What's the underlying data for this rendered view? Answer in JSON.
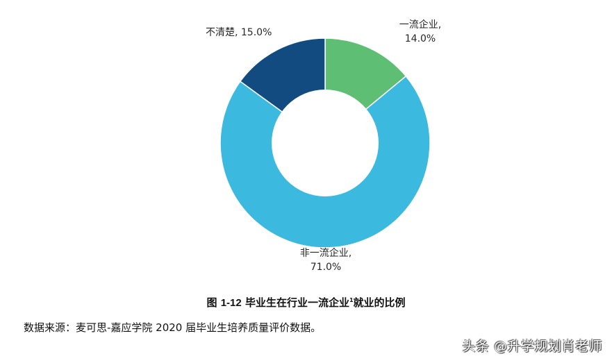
{
  "chart_data": {
    "type": "pie",
    "subtype": "donut",
    "title": "图 1-12 毕业生在行业一流企业就业的比例",
    "categories": [
      "一流企业",
      "非一流企业",
      "不清楚"
    ],
    "values": [
      14.0,
      71.0,
      15.0
    ],
    "unit": "%",
    "colors": [
      "#5ebe74",
      "#3bb9de",
      "#124b80"
    ],
    "data_labels": [
      "一流企业, 14.0%",
      "非一流企业, 71.0%",
      "不清楚, 15.0%"
    ],
    "start_angle_deg": 0,
    "direction": "clockwise",
    "legend": "none"
  },
  "labels": {
    "first_tier": {
      "name": "一流企业,",
      "value": "14.0%"
    },
    "non_first_tier": {
      "name": "非一流企业,",
      "value": "71.0%"
    },
    "unclear": {
      "text": "不清楚, 15.0%"
    }
  },
  "figure": {
    "prefix": "图",
    "number": "1-12",
    "caption": "毕业生在行业一流企业就业的比例",
    "footnote_mark": "1"
  },
  "source": "数据来源：麦可思-嘉应学院 2020 届毕业生培养质量评价数据。",
  "watermark": "头条 @升学规划肖老师"
}
